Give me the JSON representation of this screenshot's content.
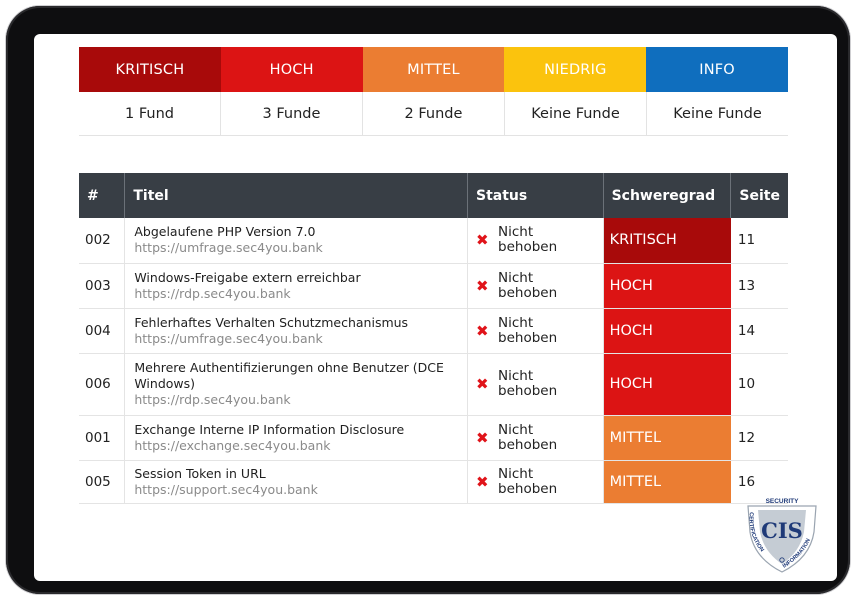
{
  "colors": {
    "kritisch": "#a80a0a",
    "hoch": "#dc1414",
    "mittel": "#eb7d32",
    "niedrig": "#fbc30d",
    "info": "#0f6ebe",
    "header_dark": "#383e45"
  },
  "summary": {
    "levels": [
      {
        "label": "KRITISCH",
        "count": "1 Fund"
      },
      {
        "label": "HOCH",
        "count": "3 Funde"
      },
      {
        "label": "MITTEL",
        "count": "2 Funde"
      },
      {
        "label": "NIEDRIG",
        "count": "Keine Funde"
      },
      {
        "label": "INFO",
        "count": "Keine Funde"
      }
    ]
  },
  "table": {
    "headers": {
      "id": "#",
      "title": "Titel",
      "status": "Status",
      "severity": "Schweregrad",
      "page": "Seite"
    },
    "rows": [
      {
        "id": "002",
        "title": "Abgelaufene PHP Version 7.0",
        "url": "https://umfrage.sec4you.bank",
        "status": "Nicht behoben",
        "severity": "KRITISCH",
        "page": "11"
      },
      {
        "id": "003",
        "title": "Windows-Freigabe extern erreichbar",
        "url": "https://rdp.sec4you.bank",
        "status": "Nicht behoben",
        "severity": "HOCH",
        "page": "13"
      },
      {
        "id": "004",
        "title": "Fehlerhaftes Verhalten Schutzmechanismus",
        "url": "https://umfrage.sec4you.bank",
        "status": "Nicht behoben",
        "severity": "HOCH",
        "page": "14"
      },
      {
        "id": "006",
        "title": "Mehrere Authentifizierungen ohne Benutzer (DCE Windows)",
        "url": "https://rdp.sec4you.bank",
        "status": "Nicht behoben",
        "severity": "HOCH",
        "page": "10"
      },
      {
        "id": "001",
        "title": "Exchange Interne IP Information Disclosure",
        "url": "https://exchange.sec4you.bank",
        "status": "Nicht behoben",
        "severity": "MITTEL",
        "page": "12"
      },
      {
        "id": "005",
        "title": "Session Token in URL",
        "url": "https://support.sec4you.bank",
        "status": "Nicht behoben",
        "severity": "MITTEL",
        "page": "16"
      }
    ]
  },
  "badge": {
    "top_text": "SECURITY",
    "left_text": "CERTIFICATION",
    "right_text": "INFORMATION",
    "logo": "CIS"
  }
}
